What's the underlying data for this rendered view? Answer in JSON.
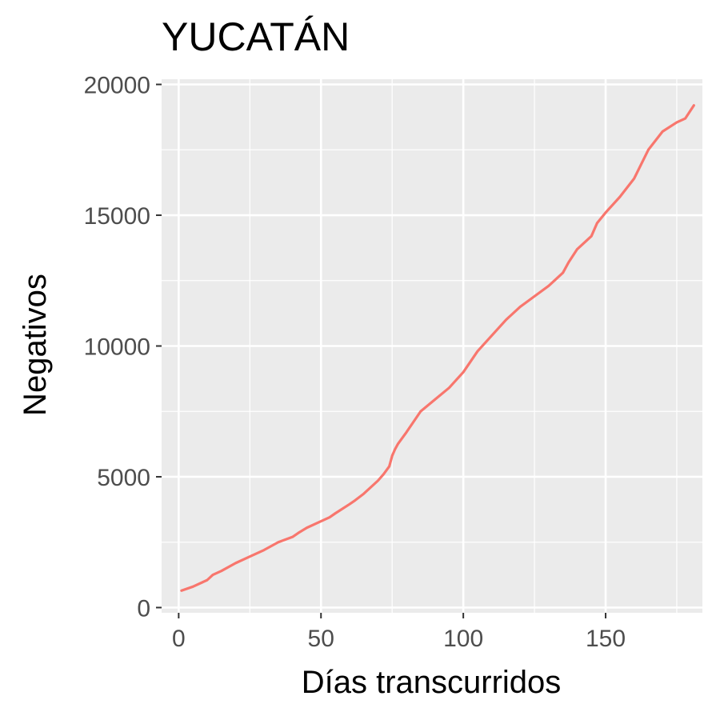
{
  "chart_data": {
    "type": "line",
    "title": "YUCATÁN",
    "xlabel": "Días transcurridos",
    "ylabel": "Negativos",
    "xlim": [
      -6,
      184
    ],
    "ylim": [
      -200,
      20200
    ],
    "x_ticks": [
      0,
      50,
      100,
      150
    ],
    "x_tick_labels": [
      "0",
      "50",
      "100",
      "150"
    ],
    "y_ticks": [
      0,
      5000,
      10000,
      15000,
      20000
    ],
    "y_tick_labels": [
      "0",
      "5000",
      "10000",
      "15000",
      "20000"
    ],
    "grid": true,
    "colors": {
      "panel": "#ebebeb",
      "grid": "#ffffff",
      "line": "#f8766d",
      "tick": "#333333"
    },
    "series": [
      {
        "x": [
          1,
          5,
          10,
          12,
          15,
          20,
          25,
          30,
          35,
          40,
          42,
          45,
          50,
          53,
          55,
          60,
          62,
          65,
          70,
          72,
          74,
          75,
          76,
          77,
          80,
          85,
          90,
          95,
          100,
          105,
          110,
          115,
          120,
          125,
          130,
          135,
          137,
          140,
          145,
          147,
          150,
          155,
          160,
          165,
          170,
          175,
          178,
          181
        ],
        "y": [
          650,
          800,
          1050,
          1250,
          1400,
          1700,
          1950,
          2200,
          2500,
          2700,
          2850,
          3050,
          3300,
          3450,
          3600,
          3950,
          4100,
          4350,
          4850,
          5100,
          5400,
          5800,
          6050,
          6250,
          6700,
          7500,
          7950,
          8400,
          9000,
          9800,
          10400,
          11000,
          11500,
          11900,
          12300,
          12800,
          13200,
          13700,
          14200,
          14700,
          15100,
          15700,
          16400,
          17500,
          18200,
          18550,
          18700,
          19200
        ]
      }
    ]
  }
}
